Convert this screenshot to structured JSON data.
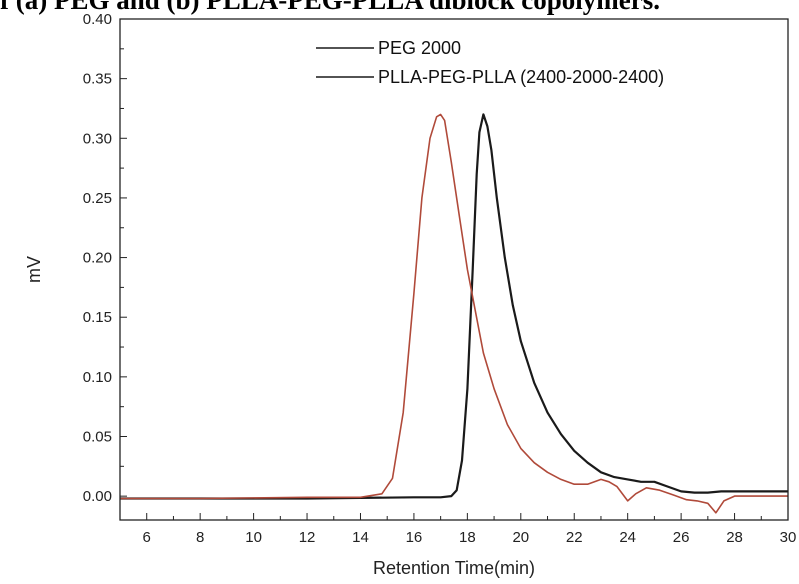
{
  "caption": "f (a) PEG and (b) PLLA-PEG-PLLA diblock copolymers.",
  "chart_data": {
    "type": "line",
    "title": "",
    "xlabel": "Retention Time(min)",
    "ylabel": "mV",
    "xlim": [
      5,
      30
    ],
    "ylim": [
      -0.02,
      0.4
    ],
    "xticks": [
      6,
      8,
      10,
      12,
      14,
      16,
      18,
      20,
      22,
      24,
      26,
      28,
      30
    ],
    "yticks": [
      0.0,
      0.05,
      0.1,
      0.15,
      0.2,
      0.25,
      0.3,
      0.35,
      0.4
    ],
    "ytick_labels": [
      "0.00",
      "0.05",
      "0.10",
      "0.15",
      "0.20",
      "0.25",
      "0.30",
      "0.35",
      "0.40"
    ],
    "grid": false,
    "legend_position": "top-right",
    "series": [
      {
        "name": "PEG 2000",
        "color": "#1a1a1a",
        "x": [
          5.0,
          8.0,
          12.0,
          16.0,
          17.0,
          17.4,
          17.6,
          17.8,
          18.0,
          18.2,
          18.35,
          18.45,
          18.6,
          18.75,
          18.9,
          19.1,
          19.4,
          19.7,
          20.0,
          20.5,
          21.0,
          21.5,
          22.0,
          22.5,
          23.0,
          23.5,
          24.0,
          24.5,
          25.0,
          25.5,
          26.0,
          26.5,
          27.0,
          27.5,
          28.0,
          29.0,
          30.0
        ],
        "y": [
          -0.002,
          -0.002,
          -0.002,
          -0.001,
          -0.001,
          0.0,
          0.005,
          0.03,
          0.09,
          0.19,
          0.27,
          0.305,
          0.32,
          0.31,
          0.29,
          0.25,
          0.2,
          0.16,
          0.13,
          0.095,
          0.07,
          0.052,
          0.038,
          0.028,
          0.02,
          0.016,
          0.014,
          0.012,
          0.012,
          0.008,
          0.004,
          0.003,
          0.003,
          0.004,
          0.004,
          0.004,
          0.004
        ]
      },
      {
        "name": "PLLA-PEG-PLLA (2400-2000-2400)",
        "color": "#b04a3a",
        "x": [
          5.0,
          8.0,
          12.0,
          14.0,
          14.8,
          15.2,
          15.6,
          16.0,
          16.3,
          16.6,
          16.85,
          17.0,
          17.15,
          17.4,
          17.7,
          18.0,
          18.3,
          18.6,
          19.0,
          19.5,
          20.0,
          20.5,
          21.0,
          21.5,
          22.0,
          22.5,
          23.0,
          23.3,
          23.6,
          24.0,
          24.3,
          24.7,
          25.2,
          25.7,
          26.2,
          26.6,
          27.0,
          27.3,
          27.6,
          28.0,
          29.0,
          30.0
        ],
        "y": [
          -0.002,
          -0.002,
          -0.001,
          -0.001,
          0.002,
          0.015,
          0.07,
          0.17,
          0.25,
          0.3,
          0.318,
          0.32,
          0.315,
          0.28,
          0.235,
          0.19,
          0.155,
          0.12,
          0.09,
          0.06,
          0.04,
          0.028,
          0.02,
          0.014,
          0.01,
          0.01,
          0.014,
          0.012,
          0.008,
          -0.004,
          0.002,
          0.007,
          0.005,
          0.001,
          -0.003,
          -0.004,
          -0.006,
          -0.014,
          -0.004,
          0.0,
          0.0,
          0.0
        ]
      }
    ]
  }
}
